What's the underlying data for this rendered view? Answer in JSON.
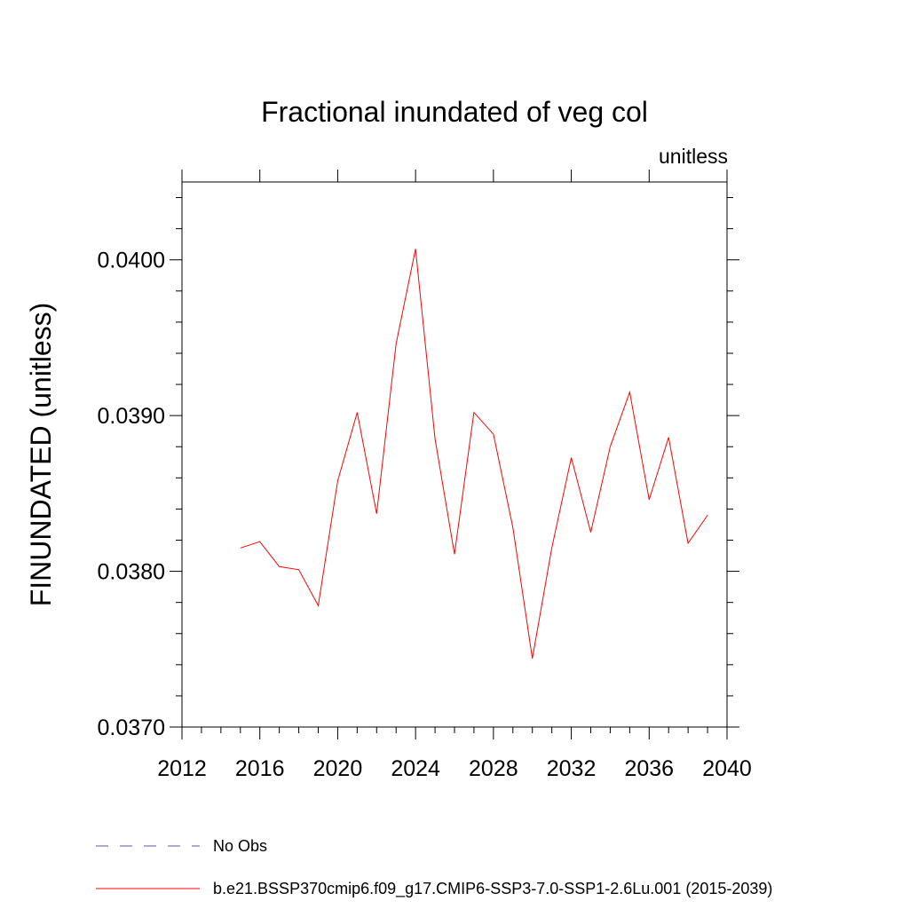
{
  "chart_data": {
    "type": "line",
    "title": "Fractional inundated of veg col",
    "units_label": "unitless",
    "xlabel": "",
    "ylabel": "FINUNDATED  (unitless)",
    "xlim": [
      2012,
      2040
    ],
    "ylim": [
      0.037,
      0.0405
    ],
    "x_ticks": [
      2012,
      2016,
      2020,
      2024,
      2028,
      2032,
      2036,
      2040
    ],
    "y_ticks": [
      "0.0370",
      "0.0380",
      "0.0390",
      "0.0400"
    ],
    "grid": false,
    "legend_position": "bottom",
    "series": [
      {
        "name": "No Obs",
        "color": "#5b4fb8",
        "style": "dashed",
        "x": [],
        "y": []
      },
      {
        "name": "b.e21.BSSP370cmip6.f09_g17.CMIP6-SSP3-7.0-SSP1-2.6Lu.001 (2015-2039)",
        "color": "#ff0000",
        "style": "solid",
        "x": [
          2015,
          2016,
          2017,
          2018,
          2019,
          2020,
          2021,
          2022,
          2023,
          2024,
          2025,
          2026,
          2027,
          2028,
          2029,
          2030,
          2031,
          2032,
          2033,
          2034,
          2035,
          2036,
          2037,
          2038,
          2039
        ],
        "y": [
          0.03815,
          0.03819,
          0.03803,
          0.03801,
          0.03778,
          0.03858,
          0.03902,
          0.03837,
          0.03946,
          0.04007,
          0.03885,
          0.03811,
          0.03902,
          0.03888,
          0.03828,
          0.03744,
          0.03815,
          0.03873,
          0.03825,
          0.0388,
          0.03915,
          0.03846,
          0.03886,
          0.03818,
          0.03836
        ]
      }
    ]
  }
}
